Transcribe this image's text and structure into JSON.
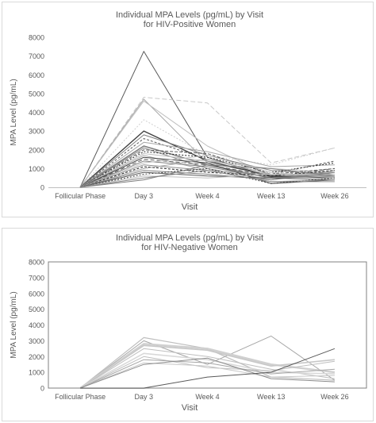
{
  "chart_data": [
    {
      "type": "line",
      "title": "Individual MPA Levels (pg/mL) by Visit",
      "subtitle": "for HIV-Positive Women",
      "xlabel": "Visit",
      "ylabel": "MPA Level (pg/mL)",
      "categories": [
        "Follicular Phase",
        "Day 3",
        "Week  4",
        "Week 13",
        "Week 26"
      ],
      "ylim": [
        0,
        8000
      ],
      "yticks": [
        "0",
        "1000",
        "2000",
        "3000",
        "4000",
        "5000",
        "6000",
        "7000",
        "8000"
      ],
      "grid": false,
      "legend": "none",
      "series": [
        {
          "values": [
            0,
            7250,
            1600,
            550,
            700
          ],
          "color": "#595959",
          "dash": "",
          "width": 1
        },
        {
          "values": [
            0,
            4800,
            4500,
            1300,
            2100
          ],
          "color": "#c8c8c8",
          "dash": "6,3",
          "width": 1
        },
        {
          "values": [
            0,
            4700,
            1300,
            650,
            800
          ],
          "color": "#a6a6a6",
          "dash": "",
          "width": 1
        },
        {
          "values": [
            0,
            4600,
            2200,
            600,
            700
          ],
          "color": "#bfbfbf",
          "dash": "",
          "width": 1
        },
        {
          "values": [
            0,
            3600,
            1700,
            1200,
            2100
          ],
          "color": "#d0d0d0",
          "dash": "2,2",
          "width": 1
        },
        {
          "values": [
            0,
            3000,
            1400,
            600,
            500
          ],
          "color": "#404040",
          "dash": "",
          "width": 1.4
        },
        {
          "values": [
            0,
            2800,
            1700,
            900,
            700
          ],
          "color": "#7f7f7f",
          "dash": "",
          "width": 1
        },
        {
          "values": [
            0,
            2600,
            1500,
            700,
            1400
          ],
          "color": "#595959",
          "dash": "3,2",
          "width": 1
        },
        {
          "values": [
            0,
            2400,
            1900,
            1100,
            1200
          ],
          "color": "#a6a6a6",
          "dash": "",
          "width": 1
        },
        {
          "values": [
            0,
            2200,
            1200,
            500,
            600
          ],
          "color": "#7f7f7f",
          "dash": "",
          "width": 1.6
        },
        {
          "values": [
            0,
            2100,
            1000,
            400,
            900
          ],
          "color": "#8c8c8c",
          "dash": "",
          "width": 1
        },
        {
          "values": [
            0,
            2000,
            1800,
            700,
            1000
          ],
          "color": "#595959",
          "dash": "4,2",
          "width": 1
        },
        {
          "values": [
            0,
            1900,
            1600,
            800,
            1300
          ],
          "color": "#262626",
          "dash": "2,2",
          "width": 1
        },
        {
          "values": [
            0,
            1800,
            1400,
            1000,
            800
          ],
          "color": "#bfbfbf",
          "dash": "",
          "width": 1
        },
        {
          "values": [
            0,
            1700,
            900,
            700,
            600
          ],
          "color": "#a6a6a6",
          "dash": "",
          "width": 1
        },
        {
          "values": [
            0,
            1600,
            1300,
            200,
            400
          ],
          "color": "#404040",
          "dash": "",
          "width": 1
        },
        {
          "values": [
            0,
            1500,
            1200,
            600,
            1000
          ],
          "color": "#595959",
          "dash": "5,3",
          "width": 1
        },
        {
          "values": [
            0,
            1400,
            1100,
            500,
            700
          ],
          "color": "#7f7f7f",
          "dash": "",
          "width": 1
        },
        {
          "values": [
            0,
            1300,
            1700,
            800,
            500
          ],
          "color": "#bfbfbf",
          "dash": "",
          "width": 1
        },
        {
          "values": [
            0,
            1200,
            900,
            300,
            300
          ],
          "color": "#8c8c8c",
          "dash": "",
          "width": 1
        },
        {
          "values": [
            0,
            1100,
            800,
            600,
            900
          ],
          "color": "#262626",
          "dash": "3,2",
          "width": 1
        },
        {
          "values": [
            0,
            1000,
            1500,
            700,
            600
          ],
          "color": "#a6a6a6",
          "dash": "",
          "width": 1
        },
        {
          "values": [
            0,
            900,
            700,
            400,
            800
          ],
          "color": "#7f7f7f",
          "dash": "",
          "width": 1
        },
        {
          "values": [
            0,
            800,
            600,
            500,
            400
          ],
          "color": "#595959",
          "dash": "",
          "width": 1
        },
        {
          "values": [
            0,
            700,
            1000,
            200,
            500
          ],
          "color": "#404040",
          "dash": "2,2",
          "width": 1
        },
        {
          "values": [
            0,
            600,
            500,
            700,
            700
          ],
          "color": "#bfbfbf",
          "dash": "",
          "width": 1
        },
        {
          "values": [
            0,
            500,
            900,
            300,
            400
          ],
          "color": "#8c8c8c",
          "dash": "",
          "width": 1
        },
        {
          "values": [
            0,
            400,
            1200,
            1000,
            600
          ],
          "color": "#7f7f7f",
          "dash": "",
          "width": 1
        }
      ]
    },
    {
      "type": "line",
      "title": "Individual MPA Levels (pg/mL) by Visit",
      "subtitle": "for HIV-Negative Women",
      "xlabel": "Visit",
      "ylabel": "MPA Level (pg/mL)",
      "categories": [
        "Follicular Phase",
        "Day 3",
        "Week 4",
        "Week 13",
        "Week 26"
      ],
      "ylim": [
        0,
        8000
      ],
      "yticks": [
        "0",
        "1000",
        "2000",
        "3000",
        "4000",
        "5000",
        "6000",
        "7000",
        "8000"
      ],
      "grid": false,
      "legend": "none",
      "series": [
        {
          "values": [
            0,
            3200,
            2500,
            700,
            500
          ],
          "color": "#bfbfbf",
          "dash": "",
          "width": 1.2
        },
        {
          "values": [
            0,
            3000,
            1500,
            3300,
            500
          ],
          "color": "#a6a6a6",
          "dash": "",
          "width": 1
        },
        {
          "values": [
            0,
            2800,
            2500,
            1500,
            1000
          ],
          "color": "#d0d0d0",
          "dash": "",
          "width": 2.4
        },
        {
          "values": [
            0,
            2700,
            2400,
            1400,
            1800
          ],
          "color": "#c8c8c8",
          "dash": "",
          "width": 1.6
        },
        {
          "values": [
            0,
            2500,
            2000,
            1200,
            600
          ],
          "color": "#bfbfbf",
          "dash": "",
          "width": 1
        },
        {
          "values": [
            0,
            2200,
            1800,
            1000,
            900
          ],
          "color": "#d9d9d9",
          "dash": "",
          "width": 1.6
        },
        {
          "values": [
            0,
            2000,
            1300,
            1100,
            1700
          ],
          "color": "#bfbfbf",
          "dash": "",
          "width": 1
        },
        {
          "values": [
            0,
            1800,
            1600,
            900,
            1200
          ],
          "color": "#a6a6a6",
          "dash": "",
          "width": 1
        },
        {
          "values": [
            0,
            1600,
            1400,
            700,
            800
          ],
          "color": "#c8c8c8",
          "dash": "",
          "width": 1
        },
        {
          "values": [
            0,
            1500,
            1900,
            600,
            400
          ],
          "color": "#8c8c8c",
          "dash": "",
          "width": 1
        },
        {
          "values": [
            0,
            0,
            700,
            1000,
            2500
          ],
          "color": "#595959",
          "dash": "",
          "width": 1
        }
      ]
    }
  ]
}
